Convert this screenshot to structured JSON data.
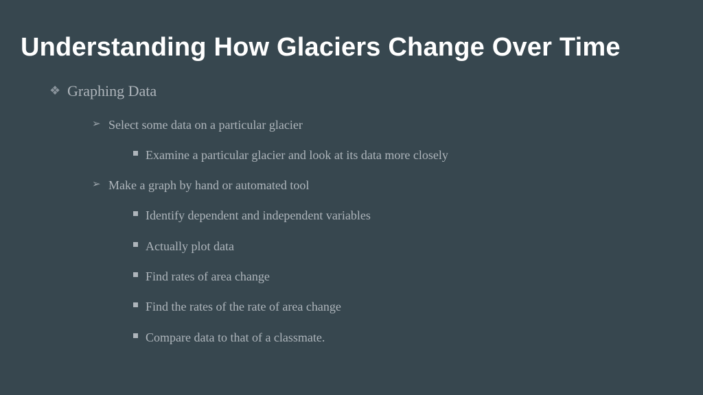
{
  "title": "Understanding How Glaciers Change Over Time",
  "level1": {
    "marker": "❖",
    "text": "Graphing Data"
  },
  "items": [
    {
      "level": 2,
      "text": "Select some data on a particular glacier"
    },
    {
      "level": 3,
      "text": "Examine a particular glacier and look at its data more closely"
    },
    {
      "level": 2,
      "text": "Make a graph by hand or automated tool"
    },
    {
      "level": 3,
      "text": "Identify dependent and independent variables"
    },
    {
      "level": 3,
      "text": "Actually plot data"
    },
    {
      "level": 3,
      "text": "Find rates of area change"
    },
    {
      "level": 3,
      "text": "Find the rates of the rate of area change"
    },
    {
      "level": 3,
      "text": "Compare data to that of a classmate."
    }
  ],
  "markers": {
    "l2": "➢"
  },
  "colors": {
    "background": "#37474f",
    "title": "#ffffff",
    "body": "#aeb5bb"
  }
}
